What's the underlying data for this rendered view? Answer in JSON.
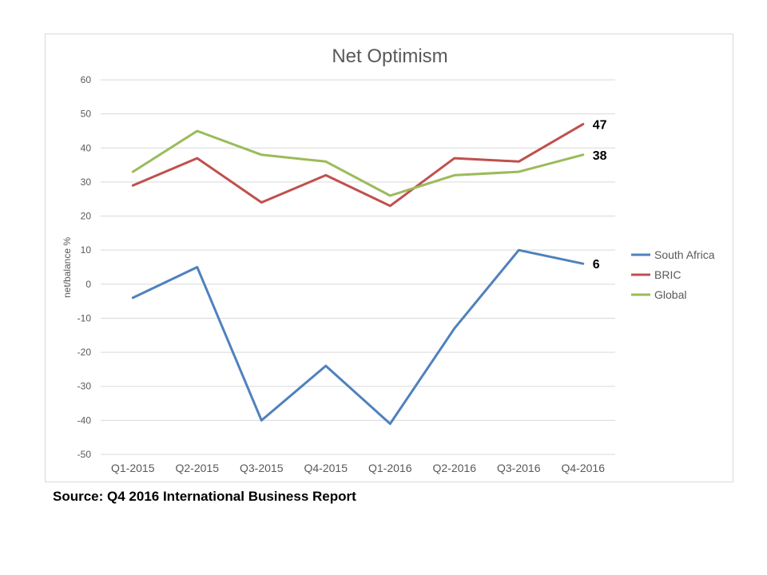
{
  "chart_data": {
    "type": "line",
    "title": "Net Optimism",
    "ylabel": "net/balance %",
    "xlabel": "",
    "ylim": [
      -50,
      60
    ],
    "yticks": [
      60,
      50,
      40,
      30,
      20,
      10,
      0,
      -10,
      -20,
      -30,
      -40,
      -50
    ],
    "grid": true,
    "legend_position": "right",
    "categories": [
      "Q1-2015",
      "Q2-2015",
      "Q3-2015",
      "Q4-2015",
      "Q1-2016",
      "Q2-2016",
      "Q3-2016",
      "Q4-2016"
    ],
    "series": [
      {
        "name": "South Africa",
        "color": "#4f81bd",
        "values": [
          -4,
          5,
          -40,
          -24,
          -41,
          -13,
          10,
          6
        ],
        "end_label": "6"
      },
      {
        "name": "BRIC",
        "color": "#c0504d",
        "values": [
          29,
          37,
          24,
          32,
          23,
          37,
          36,
          47
        ],
        "end_label": "47"
      },
      {
        "name": "Global",
        "color": "#9bbb59",
        "values": [
          33,
          45,
          38,
          36,
          26,
          32,
          33,
          38
        ],
        "end_label": "38"
      }
    ]
  },
  "source_note": "Source: Q4 2016 International Business Report"
}
